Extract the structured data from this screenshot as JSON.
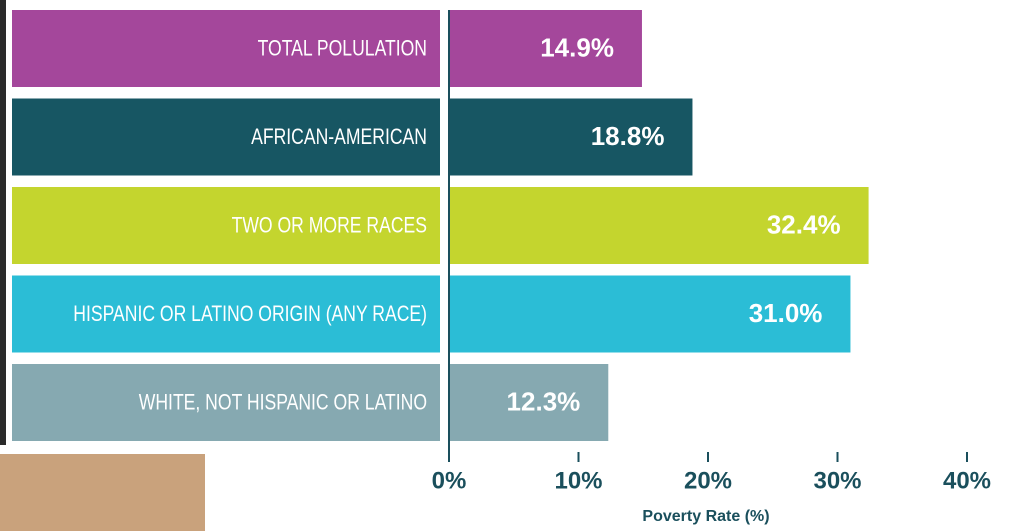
{
  "chart_data": {
    "type": "bar",
    "orientation": "horizontal",
    "categories": [
      "TOTAL POLULATION",
      "AFRICAN-AMERICAN",
      "TWO OR MORE RACES",
      "HISPANIC OR LATINO ORIGIN (ANY RACE)",
      "WHITE, NOT HISPANIC OR LATINO"
    ],
    "values": [
      14.9,
      18.8,
      32.4,
      31.0,
      12.3
    ],
    "value_labels": [
      "14.9%",
      "18.8%",
      "32.4%",
      "31.0%",
      "12.3%"
    ],
    "colors": [
      "#a4479b",
      "#175663",
      "#c4d52e",
      "#2bbdd6",
      "#86a9b1"
    ],
    "xlim": [
      0,
      40
    ],
    "xticks": [
      {
        "value": 0,
        "label": "0%"
      },
      {
        "value": 10,
        "label": "10%"
      },
      {
        "value": 20,
        "label": "20%"
      },
      {
        "value": 30,
        "label": "30%"
      },
      {
        "value": 40,
        "label": "40%"
      }
    ],
    "xlabel": "Poverty Rate (%)"
  }
}
